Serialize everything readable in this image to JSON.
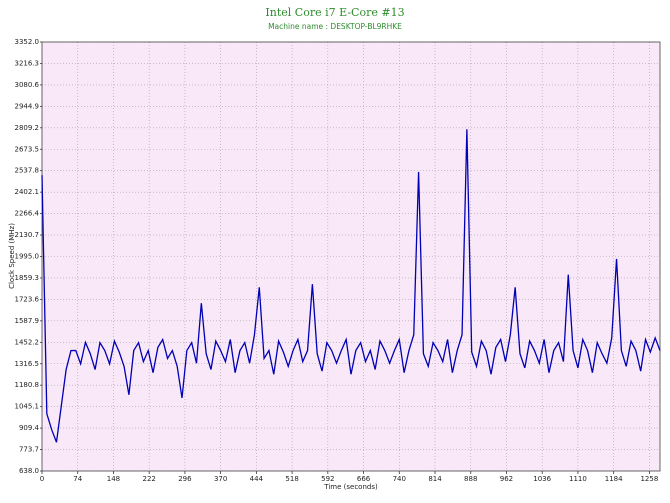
{
  "chart_data": {
    "type": "line",
    "title": "Intel Core i7 E-Core #13",
    "subtitle": "Machine name : DESKTOP-BL9RHKE",
    "y_label": "Clock Speed (MHz)",
    "x_label": "Time (seconds)",
    "color": "#0000b4",
    "grid": true,
    "xlim": [
      0,
      1280
    ],
    "ylim": [
      638,
      3352
    ],
    "xticks": [
      0,
      74,
      148,
      222,
      296,
      370,
      444,
      518,
      592,
      666,
      740,
      814,
      888,
      962,
      1036,
      1110,
      1184,
      1258
    ],
    "yticks": [
      {
        "value": 638,
        "label": "638.0"
      },
      773.7,
      909.4,
      1045.1,
      1180.8,
      1316.5,
      1452.2,
      1587.9,
      1723.6,
      1859.3,
      {
        "value": 1995,
        "label": "1995.0"
      },
      2130.7,
      2266.4,
      2402.1,
      2537.8,
      2673.5,
      2809.2,
      2944.9,
      3080.6,
      3216.3,
      {
        "value": 3352,
        "label": "3352.0"
      }
    ],
    "x": [
      0,
      10,
      20,
      30,
      40,
      50,
      60,
      70,
      80,
      90,
      100,
      110,
      120,
      130,
      140,
      150,
      160,
      170,
      180,
      190,
      200,
      210,
      220,
      230,
      240,
      250,
      260,
      270,
      280,
      290,
      300,
      310,
      320,
      330,
      340,
      350,
      360,
      370,
      380,
      390,
      400,
      410,
      420,
      430,
      440,
      450,
      460,
      470,
      480,
      490,
      500,
      510,
      520,
      530,
      540,
      550,
      560,
      570,
      580,
      590,
      600,
      610,
      620,
      630,
      640,
      650,
      660,
      670,
      680,
      690,
      700,
      710,
      720,
      730,
      740,
      750,
      760,
      770,
      780,
      790,
      800,
      810,
      820,
      830,
      840,
      850,
      860,
      870,
      880,
      890,
      900,
      910,
      920,
      930,
      940,
      950,
      960,
      970,
      980,
      990,
      1000,
      1010,
      1020,
      1030,
      1040,
      1050,
      1060,
      1070,
      1080,
      1090,
      1100,
      1110,
      1120,
      1130,
      1140,
      1150,
      1160,
      1170,
      1180,
      1190,
      1200,
      1210,
      1220,
      1230,
      1240,
      1250,
      1260,
      1270,
      1280
    ],
    "values": [
      2510,
      1000,
      900,
      820,
      1050,
      1280,
      1400,
      1400,
      1316,
      1452,
      1380,
      1280,
      1450,
      1400,
      1316,
      1460,
      1390,
      1300,
      1120,
      1400,
      1450,
      1330,
      1400,
      1260,
      1420,
      1470,
      1350,
      1400,
      1300,
      1100,
      1400,
      1450,
      1320,
      1700,
      1380,
      1280,
      1460,
      1400,
      1330,
      1470,
      1260,
      1400,
      1450,
      1320,
      1500,
      1800,
      1350,
      1400,
      1250,
      1460,
      1390,
      1300,
      1400,
      1470,
      1330,
      1400,
      1820,
      1380,
      1270,
      1450,
      1400,
      1320,
      1400,
      1470,
      1250,
      1400,
      1450,
      1330,
      1400,
      1280,
      1460,
      1400,
      1320,
      1400,
      1470,
      1260,
      1400,
      1500,
      2530,
      1380,
      1300,
      1450,
      1400,
      1330,
      1470,
      1260,
      1400,
      1500,
      2800,
      1390,
      1300,
      1460,
      1400,
      1250,
      1420,
      1470,
      1330,
      1500,
      1800,
      1380,
      1290,
      1460,
      1400,
      1320,
      1470,
      1260,
      1400,
      1450,
      1330,
      1880,
      1400,
      1290,
      1470,
      1400,
      1260,
      1450,
      1380,
      1320,
      1480,
      1980,
      1400,
      1300,
      1460,
      1400,
      1270,
      1470,
      1390,
      1480,
      1400
    ]
  }
}
